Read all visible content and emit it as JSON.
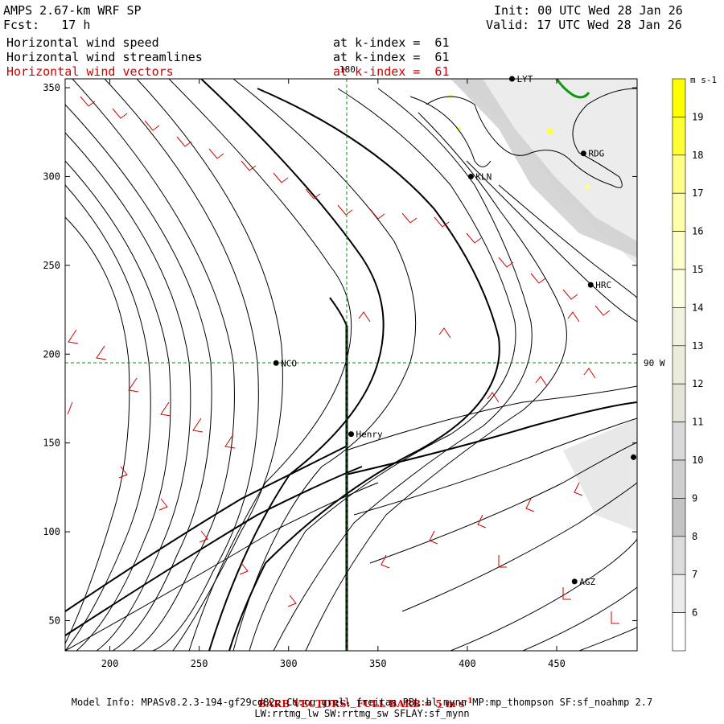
{
  "header": {
    "title": "AMPS 2.67-km WRF SP",
    "init": "Init: 00 UTC Wed 28 Jan 26",
    "fcst": "Fcst:   17 h",
    "valid": "Valid: 17 UTC Wed 28 Jan 26",
    "fields": [
      {
        "name": "Horizontal wind speed",
        "level": "at k-index =  61"
      },
      {
        "name": "Horizontal wind streamlines",
        "level": "at k-index =  61"
      },
      {
        "name": "Horizontal wind vectors",
        "level": "at k-index =  61"
      }
    ]
  },
  "axes": {
    "x_ticks": [
      "200",
      "250",
      "300",
      "350",
      "400",
      "450"
    ],
    "y_ticks": [
      "350",
      "300",
      "250",
      "200",
      "150",
      "100",
      "50"
    ],
    "meridian_label": "180",
    "parallel_label": "90 W"
  },
  "stations": [
    {
      "name": "LYT",
      "x": 425,
      "y": 355
    },
    {
      "name": "RDG",
      "x": 465,
      "y": 313
    },
    {
      "name": "KLN",
      "x": 402,
      "y": 300
    },
    {
      "name": "HRC",
      "x": 469,
      "y": 239
    },
    {
      "name": "NCO",
      "x": 293,
      "y": 195
    },
    {
      "name": "Henry",
      "x": 335,
      "y": 155
    },
    {
      "name": "",
      "x": 493,
      "y": 142
    },
    {
      "name": "AGZ",
      "x": 460,
      "y": 72
    }
  ],
  "colorbar": {
    "unit": "m s-1",
    "labels": [
      "19",
      "18",
      "17",
      "16",
      "15",
      "14",
      "13",
      "12",
      "11",
      "10",
      "9",
      "8",
      "7",
      "6"
    ],
    "colors": [
      "#ffff00",
      "#ffff33",
      "#ffff88",
      "#ffffaa",
      "#ffffcc",
      "#fefee0",
      "#f2f2e0",
      "#ececdc",
      "#e4e4d8",
      "#d9d9d9",
      "#cfcfcf",
      "#c4c4c4",
      "#dcdcdc",
      "#ececec",
      "#ffffff"
    ]
  },
  "footer": {
    "barb_note": "BARB VECTORS:  FULL BARB = 5 m s",
    "barb_sup": "-1",
    "model_info": "Model Info: MPASv8.2.3-194-gf29cd82c CU:cu_grell_freitas PBL:bl_mynn MP:mp_thompson SF:sf_noahmp 2.7",
    "model_info2": "LW:rrtmg_lw SW:rrtmg_sw SFLAY:sf_mynn"
  }
}
